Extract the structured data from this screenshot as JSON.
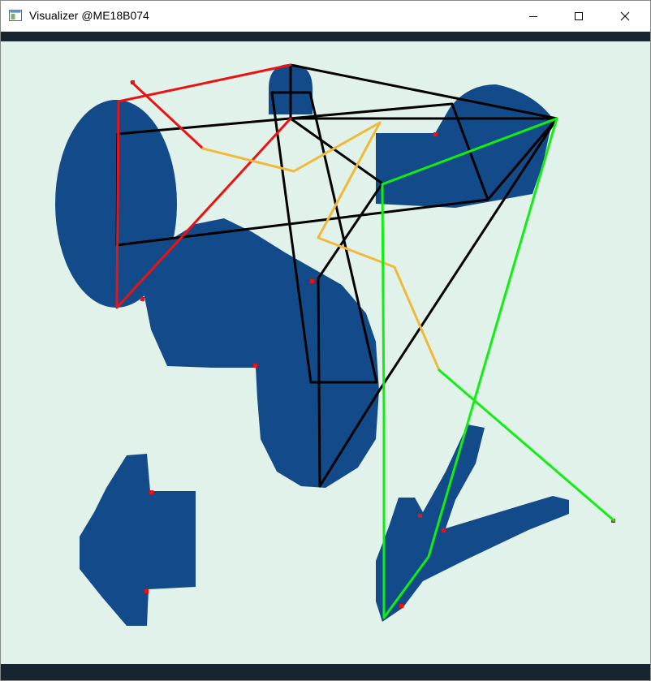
{
  "window": {
    "title": "Visualizer @ME18B074",
    "icon": "app-window-icon",
    "controls": {
      "minimize_icon": "minimize-icon",
      "maximize_icon": "maximize-icon",
      "close_icon": "close-icon"
    }
  },
  "colors": {
    "background": "#e1f2ea",
    "obstacle": "#134b8a",
    "frame_bar": "#172531",
    "red_path": "#ee1111",
    "black_tree": "#000000",
    "yellow_path": "#f0b93a",
    "green_path": "#11ee11",
    "markers": "#ee1111"
  }
}
